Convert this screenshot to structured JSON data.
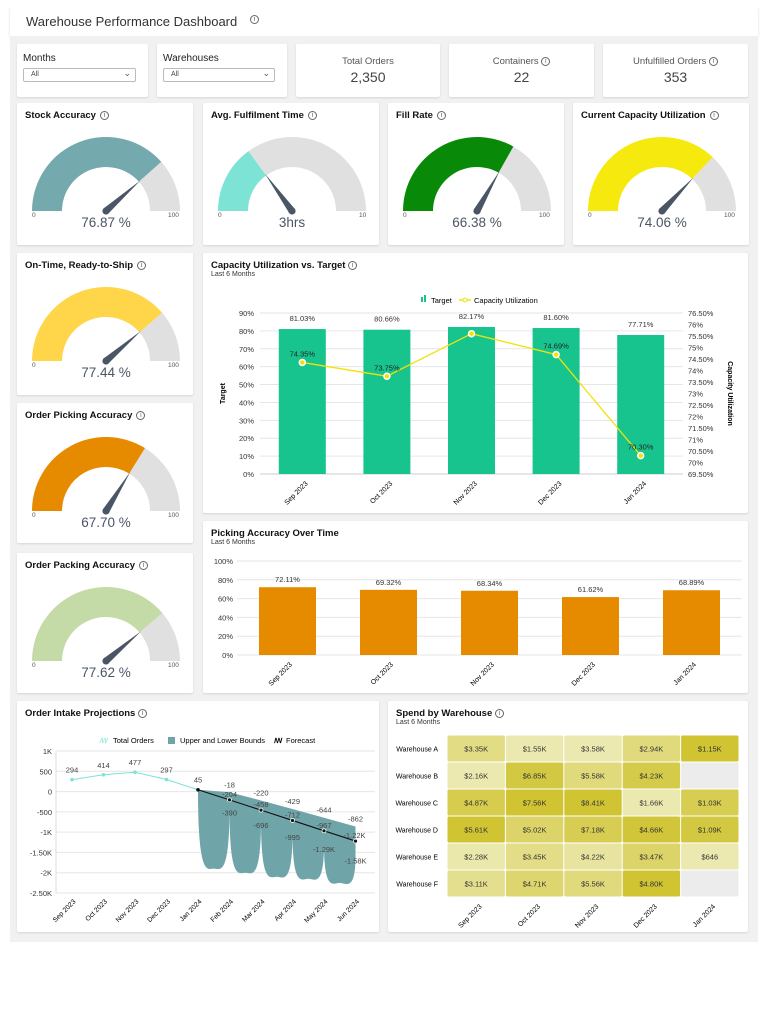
{
  "header": {
    "title": "Warehouse Performance Dashboard"
  },
  "filters": [
    {
      "label": "Months",
      "value": "All"
    },
    {
      "label": "Warehouses",
      "value": "All"
    }
  ],
  "kpis": [
    {
      "label": "Total Orders",
      "value": "2,350",
      "info": false
    },
    {
      "label": "Containers",
      "value": "22",
      "info": true
    },
    {
      "label": "Unfulfilled Orders",
      "value": "353",
      "info": true
    }
  ],
  "gauges": [
    {
      "title": "Stock Accuracy",
      "value": 76.87,
      "display": "76.87 %",
      "min": "0",
      "max": "100",
      "color": "#74a9ad"
    },
    {
      "title": "Avg. Fulfilment Time",
      "value": 3,
      "display": "3hrs",
      "min": "0",
      "max": "10",
      "color": "#7de3d4"
    },
    {
      "title": "Fill Rate",
      "value": 66.38,
      "display": "66.38 %",
      "min": "0",
      "max": "100",
      "color": "#088a08"
    },
    {
      "title": "Current Capacity Utilization",
      "value": 74.06,
      "display": "74.06 %",
      "min": "0",
      "max": "100",
      "color": "#f5e90d"
    },
    {
      "title": "On-Time, Ready-to-Ship",
      "value": 77.44,
      "display": "77.44 %",
      "min": "0",
      "max": "100",
      "color": "#ffd54a"
    },
    {
      "title": "Order Picking Accuracy",
      "value": 67.7,
      "display": "67.70 %",
      "min": "0",
      "max": "100",
      "color": "#e68a00"
    },
    {
      "title": "Order Packing Accuracy",
      "value": 77.62,
      "display": "77.62 %",
      "min": "0",
      "max": "100",
      "color": "#c5dba7"
    }
  ],
  "chart_data": [
    {
      "type": "bar+line",
      "title": "Capacity Utilization vs. Target",
      "subtitle": "Last 6 Months",
      "categories": [
        "Sep 2023",
        "Oct 2023",
        "Nov 2023",
        "Dec 2023",
        "Jan 2024"
      ],
      "series": [
        {
          "name": "Target",
          "type": "bar",
          "axis": "left",
          "color": "#17c48d",
          "values": [
            81.03,
            80.66,
            82.17,
            81.6,
            77.71
          ],
          "labels": [
            "81.03%",
            "80.66%",
            "82.17%",
            "81.60%",
            "77.71%"
          ]
        },
        {
          "name": "Capacity Utilization",
          "type": "line",
          "axis": "right",
          "color": "#f0e30a",
          "values": [
            74.35,
            73.75,
            75.6,
            74.69,
            70.3
          ],
          "labels": [
            "74.35%",
            "73.75%",
            "",
            "74.69%",
            "70.30%"
          ]
        }
      ],
      "ylabel": "Target",
      "y2label": "Capacity Utilization",
      "ylim": [
        0,
        90
      ],
      "y2lim": [
        69.5,
        76.5
      ],
      "yticks": [
        "0%",
        "10%",
        "20%",
        "30%",
        "40%",
        "50%",
        "60%",
        "70%",
        "80%",
        "90%"
      ],
      "y2ticks": [
        "69.50%",
        "70%",
        "70.50%",
        "71%",
        "71.50%",
        "72%",
        "72.50%",
        "73%",
        "73.50%",
        "74%",
        "74.50%",
        "75%",
        "75.50%",
        "76%",
        "76.50%"
      ],
      "legend": "top",
      "grid": true
    },
    {
      "type": "bar",
      "title": "Picking Accuracy Over Time",
      "subtitle": "Last 6 Months",
      "categories": [
        "Sep 2023",
        "Oct 2023",
        "Nov 2023",
        "Dec 2023",
        "Jan 2024"
      ],
      "values": [
        72.11,
        69.32,
        68.34,
        61.62,
        68.89
      ],
      "labels": [
        "72.11%",
        "69.32%",
        "68.34%",
        "61.62%",
        "68.89%"
      ],
      "color": "#e68a00",
      "ylim": [
        0,
        100
      ],
      "yticks": [
        "0%",
        "20%",
        "40%",
        "60%",
        "80%",
        "100%"
      ],
      "grid": true
    },
    {
      "type": "line+area",
      "title": "Order Intake Projections",
      "categories": [
        "Sep 2023",
        "Oct 2023",
        "Nov 2023",
        "Dec 2023",
        "Jan 2024",
        "Feb 2024",
        "Mar 2024",
        "Apr 2024",
        "May 2024",
        "Jun 2024"
      ],
      "series": [
        {
          "name": "Total Orders",
          "color": "#7de3d4",
          "values": [
            294,
            414,
            477,
            297,
            45,
            null,
            null,
            null,
            null,
            null
          ],
          "labels": [
            "294",
            "414",
            "477",
            "297",
            "45",
            "",
            "",
            "",
            "",
            ""
          ]
        },
        {
          "name": "Upper and Lower Bounds",
          "color": "#6fa5a9",
          "upper": [
            null,
            null,
            null,
            null,
            45,
            -18,
            -220,
            -429,
            -644,
            -862
          ],
          "lower": [
            null,
            null,
            null,
            null,
            45,
            -390,
            -696,
            -995,
            -1290,
            -1580
          ],
          "upper_labels": [
            "",
            "",
            "",
            "",
            "",
            "-18",
            "-220",
            "-429",
            "-644",
            "-862"
          ],
          "lower_labels": [
            "",
            "",
            "",
            "",
            "",
            "-390",
            "-696",
            "-995",
            "-1.29K",
            "-1.58K"
          ]
        },
        {
          "name": "Forecast",
          "color": "#111111",
          "values": [
            null,
            null,
            null,
            null,
            45,
            -204,
            -458,
            -712,
            -967,
            -1220
          ],
          "labels": [
            "",
            "",
            "",
            "",
            "",
            "-204",
            "-458",
            "-712",
            "-967",
            "-1.22K"
          ]
        }
      ],
      "ylim": [
        -2500,
        1000
      ],
      "yticks": [
        "-2.50K",
        "-2K",
        "-1.50K",
        "-1K",
        "-500",
        "0",
        "500",
        "1K"
      ],
      "legend": "top",
      "grid": true
    },
    {
      "type": "heatmap",
      "title": "Spend by Warehouse",
      "subtitle": "Last 6 Months",
      "rows": [
        "Warehouse A",
        "Warehouse B",
        "Warehouse C",
        "Warehouse D",
        "Warehouse E",
        "Warehouse F"
      ],
      "columns": [
        "Sep 2023",
        "Oct 2023",
        "Nov 2023",
        "Dec 2023",
        "Jan 2024"
      ],
      "values": [
        [
          3350,
          1550,
          3580,
          2940,
          1150
        ],
        [
          2160,
          6850,
          5580,
          4230,
          null
        ],
        [
          4870,
          7560,
          8410,
          1660,
          1030
        ],
        [
          5610,
          5020,
          7180,
          4660,
          1090
        ],
        [
          2280,
          3450,
          4220,
          3470,
          646
        ],
        [
          3110,
          4710,
          5560,
          4800,
          null
        ]
      ],
      "labels": [
        [
          "$3.35K",
          "$1.55K",
          "$3.58K",
          "$2.94K",
          "$1.15K"
        ],
        [
          "$2.16K",
          "$6.85K",
          "$5.58K",
          "$4.23K",
          ""
        ],
        [
          "$4.87K",
          "$7.56K",
          "$8.41K",
          "$1.66K",
          "$1.03K"
        ],
        [
          "$5.61K",
          "$5.02K",
          "$7.18K",
          "$4.66K",
          "$1.09K"
        ],
        [
          "$2.28K",
          "$3.45K",
          "$4.22K",
          "$3.47K",
          "$646"
        ],
        [
          "$3.11K",
          "$4.71K",
          "$5.56K",
          "$4.80K",
          ""
        ]
      ],
      "color_low": "#ece9b0",
      "color_high": "#d0c433",
      "color_empty": "#ececec"
    }
  ]
}
